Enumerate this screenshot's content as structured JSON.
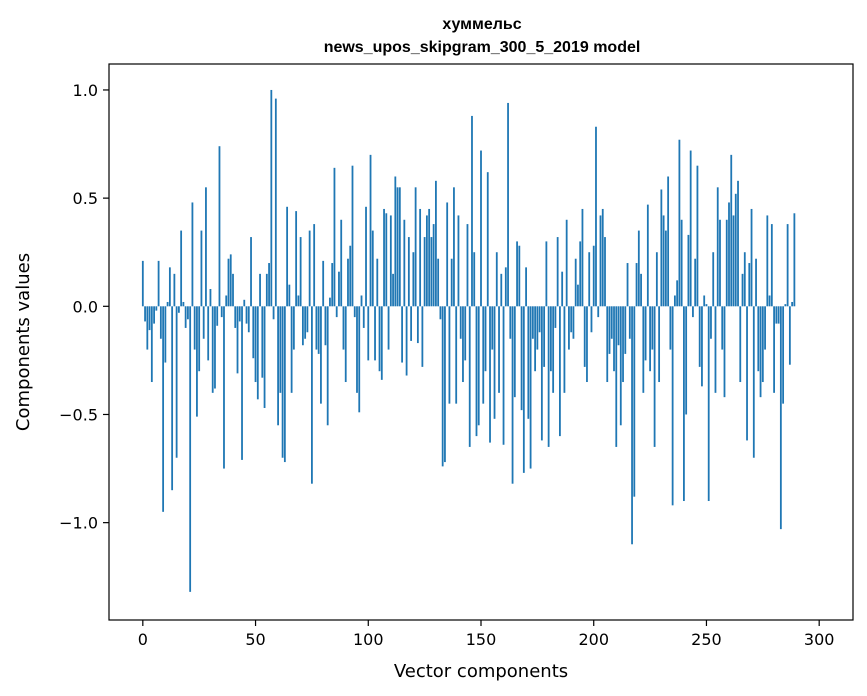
{
  "chart_data": {
    "type": "bar",
    "title_line1": "хуммельс",
    "title_line2": "news_upos_skipgram_300_5_2019 model",
    "xlabel": "Vector components",
    "ylabel": "Components values",
    "xlim": [
      -15,
      315
    ],
    "ylim": [
      -1.45,
      1.12
    ],
    "xticks": [
      0,
      50,
      100,
      150,
      200,
      250,
      300
    ],
    "xtick_labels": [
      "0",
      "50",
      "100",
      "150",
      "200",
      "250",
      "300"
    ],
    "yticks": [
      -1.0,
      -0.5,
      0.0,
      0.5,
      1.0
    ],
    "ytick_labels": [
      "−1.0",
      "−0.5",
      "0.0",
      "0.5",
      "1.0"
    ],
    "grid": false,
    "bar_color": "#1f77b4",
    "values": [
      0.21,
      -0.07,
      -0.2,
      -0.11,
      -0.35,
      -0.08,
      -0.02,
      0.21,
      -0.15,
      -0.95,
      -0.26,
      0.02,
      0.18,
      -0.85,
      0.15,
      -0.7,
      -0.03,
      0.35,
      0.02,
      -0.1,
      -0.06,
      -1.32,
      0.48,
      -0.2,
      -0.51,
      -0.3,
      0.35,
      -0.15,
      0.55,
      -0.25,
      0.08,
      -0.4,
      -0.38,
      -0.09,
      0.74,
      -0.05,
      -0.75,
      0.05,
      0.22,
      0.24,
      0.15,
      -0.1,
      -0.31,
      -0.07,
      -0.71,
      0.03,
      -0.08,
      -0.12,
      0.32,
      -0.24,
      -0.35,
      -0.43,
      0.15,
      -0.33,
      -0.47,
      0.15,
      0.2,
      1.0,
      -0.06,
      0.96,
      -0.55,
      -0.4,
      -0.7,
      -0.72,
      0.46,
      0.1,
      -0.4,
      -0.2,
      0.44,
      0.05,
      0.32,
      -0.18,
      -0.15,
      -0.12,
      0.35,
      -0.82,
      0.38,
      -0.2,
      -0.22,
      -0.45,
      0.21,
      -0.18,
      -0.55,
      0.04,
      0.2,
      0.64,
      -0.05,
      0.16,
      0.4,
      -0.2,
      -0.35,
      0.22,
      0.28,
      0.65,
      -0.05,
      -0.4,
      -0.49,
      0.05,
      -0.1,
      0.46,
      -0.25,
      0.7,
      0.35,
      -0.25,
      0.22,
      -0.3,
      -0.34,
      0.45,
      0.43,
      -0.2,
      0.42,
      0.15,
      0.6,
      0.55,
      0.55,
      -0.26,
      0.4,
      -0.32,
      0.32,
      -0.16,
      0.25,
      0.55,
      -0.17,
      0.45,
      -0.28,
      0.32,
      0.42,
      0.45,
      0.32,
      0.38,
      0.58,
      0.22,
      -0.06,
      -0.74,
      -0.72,
      0.48,
      -0.45,
      0.22,
      0.55,
      -0.45,
      0.42,
      -0.15,
      -0.35,
      -0.25,
      0.38,
      -0.65,
      0.88,
      0.25,
      -0.6,
      -0.55,
      0.72,
      -0.45,
      -0.3,
      0.62,
      -0.63,
      -0.2,
      -0.52,
      0.25,
      -0.4,
      0.15,
      -0.64,
      0.18,
      0.94,
      -0.15,
      -0.82,
      -0.42,
      0.3,
      0.28,
      -0.48,
      -0.77,
      0.18,
      -0.52,
      -0.75,
      -0.15,
      -0.3,
      -0.2,
      -0.12,
      -0.62,
      -0.28,
      0.3,
      -0.65,
      -0.3,
      -0.4,
      -0.1,
      0.32,
      -0.6,
      0.16,
      -0.4,
      0.4,
      -0.2,
      -0.12,
      -0.15,
      0.22,
      0.1,
      0.3,
      0.45,
      -0.28,
      -0.35,
      0.25,
      -0.12,
      0.28,
      0.83,
      -0.05,
      0.42,
      0.45,
      0.32,
      -0.35,
      -0.22,
      -0.15,
      -0.3,
      -0.65,
      -0.18,
      -0.55,
      -0.35,
      -0.22,
      0.2,
      -0.15,
      -1.1,
      -0.88,
      0.2,
      0.35,
      0.15,
      -0.4,
      -0.25,
      0.47,
      -0.3,
      -0.2,
      -0.65,
      0.25,
      -0.35,
      0.54,
      0.42,
      0.35,
      0.6,
      -0.2,
      -0.92,
      0.05,
      0.12,
      0.77,
      0.4,
      -0.9,
      -0.5,
      0.33,
      0.72,
      -0.05,
      0.22,
      0.65,
      -0.28,
      -0.37,
      0.05,
      0.01,
      -0.9,
      -0.15,
      0.25,
      -0.4,
      0.55,
      0.4,
      -0.2,
      -0.42,
      0.4,
      0.48,
      0.7,
      0.42,
      0.52,
      0.58,
      -0.35,
      0.15,
      0.25,
      -0.62,
      0.2,
      0.45,
      -0.7,
      0.22,
      -0.3,
      -0.42,
      -0.35,
      -0.2,
      0.42,
      0.05,
      0.38,
      -0.4,
      -0.08,
      -0.08,
      -1.03,
      -0.45,
      0.01,
      0.38,
      -0.27,
      0.02,
      0.43
    ]
  }
}
